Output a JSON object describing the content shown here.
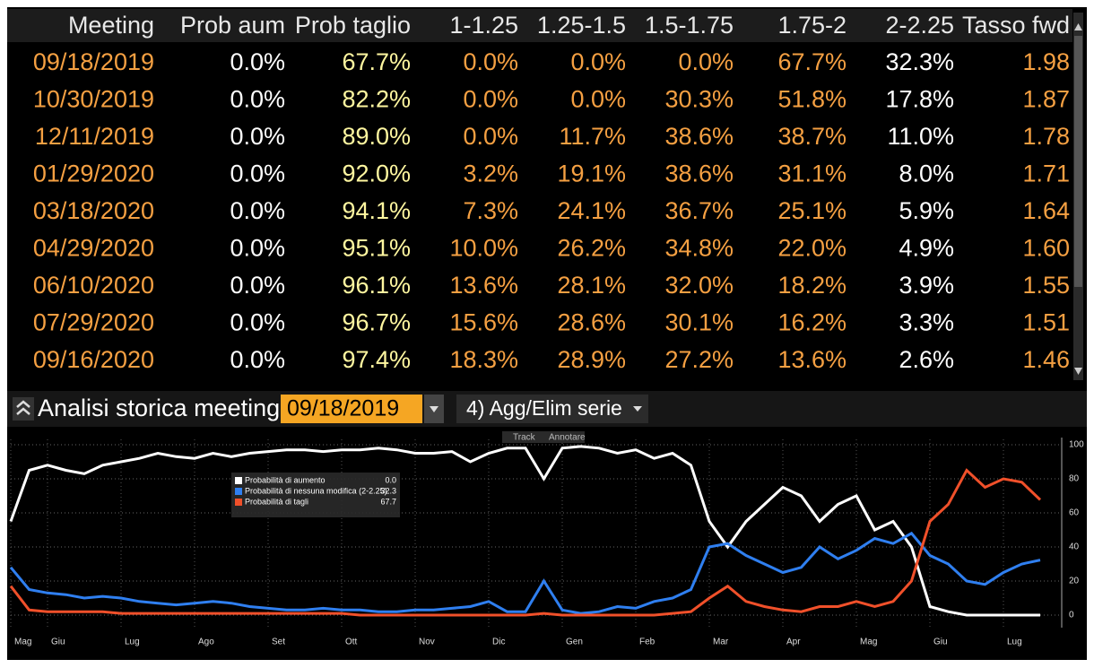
{
  "table": {
    "header": [
      "Meeting",
      "Prob aum",
      "Prob taglio",
      "1-1.25",
      "1.25-1.5",
      "1.5-1.75",
      "1.75-2",
      "2-2.25",
      "Tasso fwd"
    ],
    "rows": [
      [
        "09/18/2019",
        "0.0%",
        "67.7%",
        "0.0%",
        "0.0%",
        "0.0%",
        "67.7%",
        "32.3%",
        "1.98"
      ],
      [
        "10/30/2019",
        "0.0%",
        "82.2%",
        "0.0%",
        "0.0%",
        "30.3%",
        "51.8%",
        "17.8%",
        "1.87"
      ],
      [
        "12/11/2019",
        "0.0%",
        "89.0%",
        "0.0%",
        "11.7%",
        "38.6%",
        "38.7%",
        "11.0%",
        "1.78"
      ],
      [
        "01/29/2020",
        "0.0%",
        "92.0%",
        "3.2%",
        "19.1%",
        "38.6%",
        "31.1%",
        "8.0%",
        "1.71"
      ],
      [
        "03/18/2020",
        "0.0%",
        "94.1%",
        "7.3%",
        "24.1%",
        "36.7%",
        "25.1%",
        "5.9%",
        "1.64"
      ],
      [
        "04/29/2020",
        "0.0%",
        "95.1%",
        "10.0%",
        "26.2%",
        "34.8%",
        "22.0%",
        "4.9%",
        "1.60"
      ],
      [
        "06/10/2020",
        "0.0%",
        "96.1%",
        "13.6%",
        "28.1%",
        "32.0%",
        "18.2%",
        "3.9%",
        "1.55"
      ],
      [
        "07/29/2020",
        "0.0%",
        "96.7%",
        "15.6%",
        "28.6%",
        "30.1%",
        "16.2%",
        "3.3%",
        "1.51"
      ],
      [
        "09/16/2020",
        "0.0%",
        "97.4%",
        "18.3%",
        "28.9%",
        "27.2%",
        "13.6%",
        "2.6%",
        "1.46"
      ]
    ]
  },
  "panel": {
    "title": "Analisi storica meeting",
    "date": "09/18/2019",
    "button": "4) Agg/Elim serie",
    "track": "Track",
    "annotate": "Annotare"
  },
  "legend_values": [
    "0.0",
    "32.3",
    "67.7"
  ],
  "chart_data": {
    "type": "line",
    "categories": [
      "Mag",
      null,
      "Giu",
      null,
      null,
      null,
      "Lug",
      null,
      null,
      null,
      "Ago",
      null,
      null,
      null,
      "Set",
      null,
      null,
      null,
      "Ott",
      null,
      null,
      null,
      "Nov",
      null,
      null,
      null,
      "Dic",
      null,
      null,
      null,
      "Gen",
      null,
      null,
      null,
      "Feb",
      null,
      null,
      null,
      "Mar",
      null,
      null,
      null,
      "Apr",
      null,
      null,
      null,
      "Mag",
      null,
      null,
      null,
      "Giu",
      null,
      null,
      null,
      "Lug",
      null,
      null
    ],
    "series": [
      {
        "name": "Probabilità di aumento",
        "color": "#ffffff",
        "values": [
          55,
          85,
          88,
          85,
          83,
          88,
          90,
          92,
          95,
          93,
          92,
          95,
          93,
          95,
          96,
          97,
          97,
          96,
          97,
          97,
          98,
          97,
          95,
          95,
          96,
          90,
          95,
          98,
          98,
          80,
          98,
          99,
          98,
          95,
          97,
          92,
          95,
          88,
          55,
          40,
          55,
          65,
          75,
          70,
          55,
          65,
          70,
          50,
          55,
          40,
          5,
          2,
          0,
          0,
          0,
          0,
          0
        ]
      },
      {
        "name": "Probabilità di nessuna modifica (2-2.25)",
        "color": "#2f7ff0",
        "values": [
          28,
          15,
          13,
          12,
          10,
          11,
          10,
          8,
          7,
          6,
          7,
          8,
          7,
          5,
          4,
          3,
          3,
          4,
          3,
          3,
          2,
          2,
          3,
          3,
          4,
          5,
          8,
          2,
          2,
          20,
          3,
          1,
          2,
          5,
          4,
          8,
          10,
          15,
          40,
          42,
          35,
          30,
          25,
          28,
          40,
          33,
          38,
          45,
          42,
          48,
          35,
          30,
          20,
          18,
          25,
          30,
          32.3
        ]
      },
      {
        "name": "Probabilità di tagli",
        "color": "#f0502a",
        "values": [
          17,
          3,
          2,
          2,
          2,
          2,
          1,
          1,
          1,
          1,
          1,
          1,
          1,
          1,
          1,
          1,
          1,
          1,
          1,
          0,
          0,
          0,
          0,
          0,
          0,
          0,
          0,
          0,
          0,
          1,
          0,
          0,
          0,
          0,
          0,
          0,
          1,
          2,
          10,
          17,
          8,
          5,
          3,
          2,
          5,
          5,
          8,
          5,
          8,
          20,
          55,
          65,
          85,
          75,
          80,
          78,
          67.7
        ]
      }
    ],
    "ylim": [
      0,
      100
    ],
    "yticks": [
      0,
      20,
      40,
      60,
      80,
      100
    ],
    "grid": true
  }
}
